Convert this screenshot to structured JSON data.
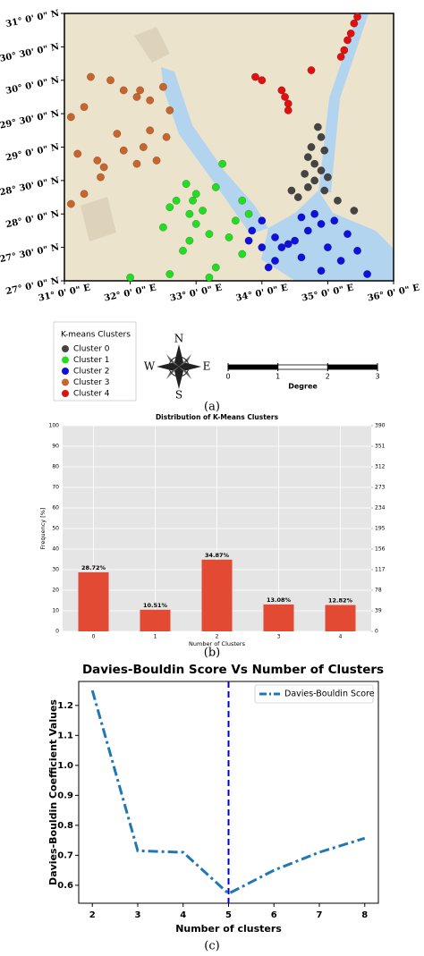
{
  "chart_data": [
    {
      "type": "scatter",
      "xlim": [
        31,
        36
      ],
      "ylim": [
        27,
        31
      ],
      "xticks": [
        {
          "value": 31,
          "label": "31° 0' 0\" E"
        },
        {
          "value": 32,
          "label": "32° 0' 0\" E"
        },
        {
          "value": 33,
          "label": "33° 0' 0\" E"
        },
        {
          "value": 34,
          "label": "34° 0' 0\" E"
        },
        {
          "value": 35,
          "label": "35° 0' 0\" E"
        },
        {
          "value": 36,
          "label": "36° 0' 0\" E"
        }
      ],
      "yticks": [
        {
          "value": 27,
          "label": "27° 0' 0\" N"
        },
        {
          "value": 27.5,
          "label": "27° 30' 0\" N"
        },
        {
          "value": 28,
          "label": "28° 0' 0\" N"
        },
        {
          "value": 28.5,
          "label": "28° 30' 0\" N"
        },
        {
          "value": 29,
          "label": "29° 0' 0\" N"
        },
        {
          "value": 29.5,
          "label": "29° 30' 0\" N"
        },
        {
          "value": 30,
          "label": "30° 0' 0\" N"
        },
        {
          "value": 30.5,
          "label": "30° 30' 0\" N"
        },
        {
          "value": 31,
          "label": "31° 0' 0\" N"
        }
      ],
      "legend_title": "K-means Clusters",
      "series": [
        {
          "name": "Cluster 0",
          "color": "#444444",
          "x": [
            34.85,
            34.9,
            34.75,
            34.95,
            34.7,
            34.8,
            34.9,
            34.65,
            34.8,
            34.7,
            35.0,
            34.95,
            34.45,
            34.55,
            35.4,
            35.15
          ],
          "y": [
            29.3,
            29.15,
            29.0,
            28.95,
            28.85,
            28.75,
            28.65,
            28.6,
            28.5,
            28.4,
            28.55,
            28.35,
            28.35,
            28.25,
            28.05,
            28.2
          ]
        },
        {
          "name": "Cluster 1",
          "color": "#22dd22",
          "x": [
            32.6,
            32.7,
            32.9,
            33.1,
            32.5,
            33.0,
            33.2,
            33.5,
            33.6,
            33.8,
            33.3,
            33.0,
            32.85,
            33.4,
            32.95,
            33.7,
            32.8,
            32.0,
            32.6,
            33.3,
            33.2,
            33.7,
            32.9
          ],
          "y": [
            28.1,
            28.2,
            28.0,
            28.05,
            27.8,
            27.85,
            27.7,
            27.65,
            27.9,
            28.0,
            28.4,
            28.3,
            28.45,
            28.75,
            28.2,
            27.4,
            27.45,
            27.05,
            27.1,
            27.2,
            27.05,
            28.2,
            27.6
          ]
        },
        {
          "name": "Cluster 2",
          "color": "#1010dd",
          "x": [
            34.0,
            33.85,
            34.2,
            34.4,
            34.5,
            34.7,
            34.9,
            35.1,
            34.3,
            34.0,
            33.8,
            34.6,
            34.8,
            35.3,
            35.0,
            34.6,
            34.2,
            35.2,
            35.6,
            34.1,
            34.9,
            35.45
          ],
          "y": [
            27.9,
            27.75,
            27.65,
            27.55,
            27.6,
            27.75,
            27.85,
            27.9,
            27.5,
            27.5,
            27.6,
            27.95,
            28.0,
            27.7,
            27.5,
            27.35,
            27.3,
            27.3,
            27.1,
            27.2,
            27.15,
            27.45
          ]
        },
        {
          "name": "Cluster 3",
          "color": "#c8652c",
          "x": [
            31.4,
            31.7,
            31.9,
            32.1,
            32.3,
            32.15,
            32.5,
            32.6,
            31.1,
            31.3,
            31.2,
            31.6,
            31.55,
            31.3,
            31.9,
            32.2,
            32.1,
            32.4,
            32.55,
            32.3,
            31.8,
            31.1,
            31.5
          ],
          "y": [
            30.05,
            30.0,
            29.85,
            29.75,
            29.7,
            29.85,
            29.9,
            29.55,
            29.45,
            29.6,
            28.9,
            28.7,
            28.55,
            28.3,
            28.95,
            29.0,
            28.75,
            28.8,
            29.15,
            29.25,
            29.2,
            28.15,
            28.8
          ]
        },
        {
          "name": "Cluster 4",
          "color": "#e01010",
          "x": [
            35.45,
            35.4,
            35.35,
            35.3,
            35.25,
            35.2,
            34.75,
            34.3,
            34.35,
            34.4,
            34.4,
            33.9,
            34.0
          ],
          "y": [
            30.95,
            30.85,
            30.7,
            30.6,
            30.45,
            30.35,
            30.15,
            29.85,
            29.75,
            29.65,
            29.55,
            30.05,
            30.0
          ]
        }
      ],
      "compass": [
        "N",
        "E",
        "S",
        "W"
      ],
      "scale_ticks": [
        0,
        1,
        2,
        3
      ],
      "scale_label": "Degree",
      "caption": "(a)"
    },
    {
      "type": "bar",
      "title": "Distribution of K-Means Clusters",
      "categories": [
        "0",
        "1",
        "2",
        "3",
        "4"
      ],
      "values": [
        28.72,
        10.51,
        34.87,
        13.08,
        12.82
      ],
      "value_labels": [
        "28.72%",
        "10.51%",
        "34.87%",
        "13.08%",
        "12.82%"
      ],
      "color": "#e24a33",
      "xlabel": "Number of Clusters",
      "ylabel": "Frequency [%]",
      "ylim": [
        0,
        100
      ],
      "yticks": [
        0,
        10,
        20,
        30,
        40,
        50,
        60,
        70,
        80,
        90,
        100
      ],
      "y2lim": [
        0,
        390
      ],
      "y2ticks": [
        0,
        39,
        78,
        117,
        156,
        195,
        234,
        273,
        312,
        351,
        390
      ],
      "grid": true,
      "caption": "(b)"
    },
    {
      "type": "line",
      "title": "Davies-Bouldin Score Vs Number of Clusters",
      "x": [
        2,
        3,
        4,
        5,
        6,
        7,
        8
      ],
      "series": [
        {
          "name": "Davies-Bouldin Score",
          "color": "#1f77b4",
          "values": [
            1.25,
            0.715,
            0.71,
            0.572,
            0.65,
            0.71,
            0.757
          ]
        }
      ],
      "xlabel": "Number of clusters",
      "ylabel": "Davies-Bouldin Coefficient Values",
      "xlim": [
        1.7,
        8.3
      ],
      "ylim": [
        0.54,
        1.28
      ],
      "xticks": [
        2,
        3,
        4,
        5,
        6,
        7,
        8
      ],
      "yticks": [
        0.6,
        0.7,
        0.8,
        0.9,
        {
          "value": 1,
          "label": "1.0"
        },
        1.1,
        1.2
      ],
      "vline": 5,
      "vline_color": "#0000cc",
      "legend": "upper right",
      "caption": "(c)"
    }
  ]
}
